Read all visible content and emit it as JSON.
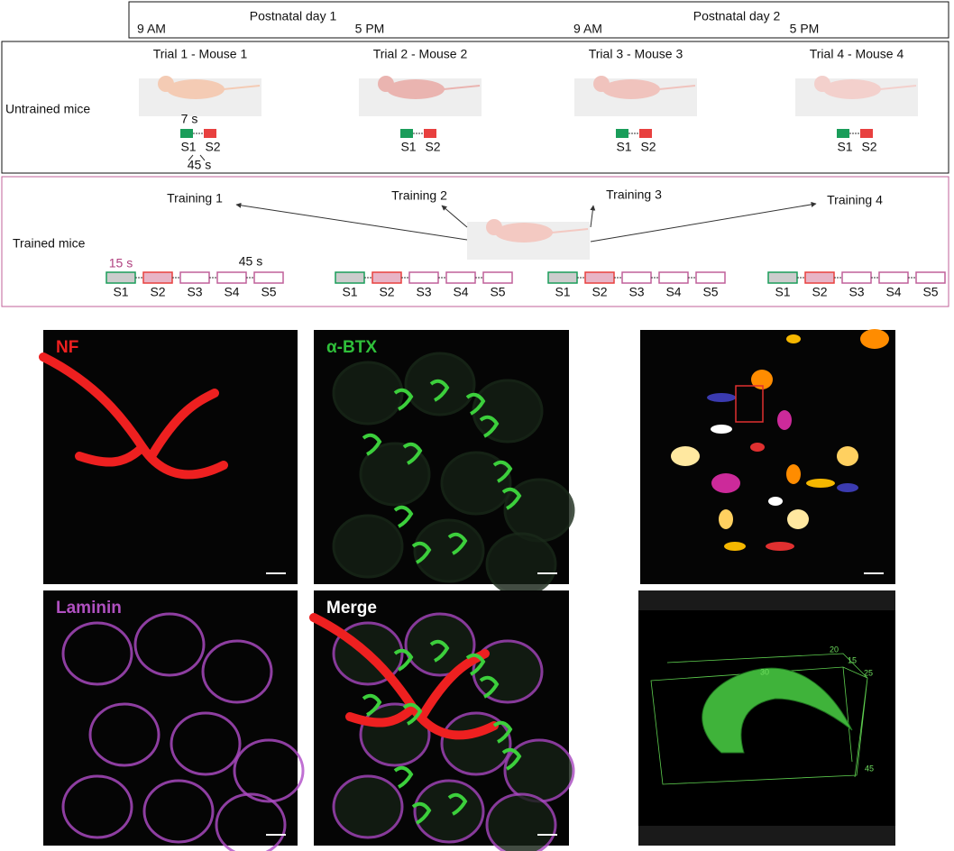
{
  "timeline": {
    "days": [
      "Postnatal day 1",
      "Postnatal day 2"
    ],
    "times": [
      "9 AM",
      "5 PM",
      "9 AM",
      "5 PM"
    ]
  },
  "untrained": {
    "label": "Untrained mice",
    "stimulus_duration": "7 s",
    "interval": "45 s",
    "trials": [
      {
        "title": "Trial 1 - Mouse 1",
        "stimuli": [
          "S1",
          "S2"
        ]
      },
      {
        "title": "Trial 2 - Mouse 2",
        "stimuli": [
          "S1",
          "S2"
        ]
      },
      {
        "title": "Trial 3 - Mouse 3",
        "stimuli": [
          "S1",
          "S2"
        ]
      },
      {
        "title": "Trial 4 - Mouse 4",
        "stimuli": [
          "S1",
          "S2"
        ]
      }
    ]
  },
  "trained": {
    "label": "Trained mice",
    "stimulus_duration": "15 s",
    "interval": "45 s",
    "trainings": [
      {
        "title": "Training 1",
        "sessions": [
          "S1",
          "S2",
          "S3",
          "S4",
          "S5"
        ]
      },
      {
        "title": "Training 2",
        "sessions": [
          "S1",
          "S2",
          "S3",
          "S4",
          "S5"
        ]
      },
      {
        "title": "Training 3",
        "sessions": [
          "S1",
          "S2",
          "S3",
          "S4",
          "S5"
        ]
      },
      {
        "title": "Training 4",
        "sessions": [
          "S1",
          "S2",
          "S3",
          "S4",
          "S5"
        ]
      }
    ]
  },
  "panels": {
    "nf": "NF",
    "btx": "α-BTX",
    "laminin": "Laminin",
    "merge": "Merge",
    "render_axis_labels": [
      "20",
      "15",
      "30",
      "25",
      "45"
    ]
  }
}
